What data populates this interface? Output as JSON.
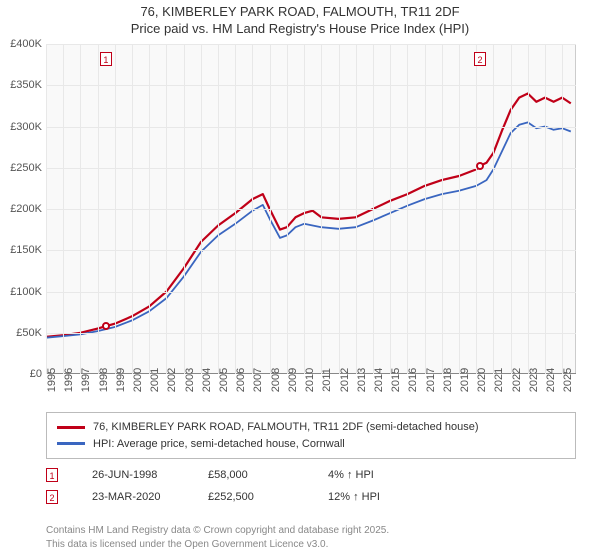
{
  "title": {
    "line1": "76, KIMBERLEY PARK ROAD, FALMOUTH, TR11 2DF",
    "line2": "Price paid vs. HM Land Registry's House Price Index (HPI)"
  },
  "chart": {
    "type": "line",
    "background_color": "#f9f9f9",
    "grid_color": "#e8e8e8",
    "axis_color": "#888888",
    "x": {
      "min": 1995,
      "max": 2025.8,
      "ticks": [
        1995,
        1996,
        1997,
        1998,
        1999,
        2000,
        2001,
        2002,
        2003,
        2004,
        2005,
        2006,
        2007,
        2008,
        2009,
        2010,
        2011,
        2012,
        2013,
        2014,
        2015,
        2016,
        2017,
        2018,
        2019,
        2020,
        2021,
        2022,
        2023,
        2024,
        2025
      ],
      "label_fontsize": 11
    },
    "y": {
      "min": 0,
      "max": 400000,
      "ticks": [
        0,
        50000,
        100000,
        150000,
        200000,
        250000,
        300000,
        350000,
        400000
      ],
      "tick_labels": [
        "£0",
        "£50K",
        "£100K",
        "£150K",
        "£200K",
        "£250K",
        "£300K",
        "£350K",
        "£400K"
      ],
      "label_fontsize": 11
    },
    "series": [
      {
        "name": "76, KIMBERLEY PARK ROAD, FALMOUTH, TR11 2DF (semi-detached house)",
        "color": "#c00018",
        "line_width": 2.2,
        "data": [
          [
            1995,
            45000
          ],
          [
            1996,
            47000
          ],
          [
            1997,
            50000
          ],
          [
            1998,
            55000
          ],
          [
            1998.5,
            58000
          ],
          [
            1999,
            61000
          ],
          [
            2000,
            70000
          ],
          [
            2001,
            82000
          ],
          [
            2002,
            100000
          ],
          [
            2003,
            128000
          ],
          [
            2004,
            160000
          ],
          [
            2005,
            180000
          ],
          [
            2006,
            195000
          ],
          [
            2007,
            212000
          ],
          [
            2007.6,
            218000
          ],
          [
            2008,
            200000
          ],
          [
            2008.6,
            175000
          ],
          [
            2009,
            178000
          ],
          [
            2009.5,
            190000
          ],
          [
            2010,
            195000
          ],
          [
            2010.5,
            198000
          ],
          [
            2011,
            190000
          ],
          [
            2012,
            188000
          ],
          [
            2013,
            190000
          ],
          [
            2014,
            200000
          ],
          [
            2015,
            210000
          ],
          [
            2016,
            218000
          ],
          [
            2017,
            228000
          ],
          [
            2018,
            235000
          ],
          [
            2019,
            240000
          ],
          [
            2020,
            248000
          ],
          [
            2020.22,
            252500
          ],
          [
            2020.6,
            256000
          ],
          [
            2021,
            268000
          ],
          [
            2021.5,
            295000
          ],
          [
            2022,
            320000
          ],
          [
            2022.5,
            335000
          ],
          [
            2023,
            340000
          ],
          [
            2023.5,
            330000
          ],
          [
            2024,
            335000
          ],
          [
            2024.5,
            330000
          ],
          [
            2025,
            335000
          ],
          [
            2025.5,
            328000
          ]
        ]
      },
      {
        "name": "HPI: Average price, semi-detached house, Cornwall",
        "color": "#3a66c0",
        "line_width": 1.8,
        "data": [
          [
            1995,
            44000
          ],
          [
            1996,
            46000
          ],
          [
            1997,
            48000
          ],
          [
            1998,
            52000
          ],
          [
            1999,
            57000
          ],
          [
            2000,
            65000
          ],
          [
            2001,
            76000
          ],
          [
            2002,
            92000
          ],
          [
            2003,
            118000
          ],
          [
            2004,
            148000
          ],
          [
            2005,
            168000
          ],
          [
            2006,
            182000
          ],
          [
            2007,
            198000
          ],
          [
            2007.6,
            205000
          ],
          [
            2008,
            188000
          ],
          [
            2008.6,
            165000
          ],
          [
            2009,
            168000
          ],
          [
            2009.5,
            178000
          ],
          [
            2010,
            182000
          ],
          [
            2011,
            178000
          ],
          [
            2012,
            176000
          ],
          [
            2013,
            178000
          ],
          [
            2014,
            186000
          ],
          [
            2015,
            195000
          ],
          [
            2016,
            204000
          ],
          [
            2017,
            212000
          ],
          [
            2018,
            218000
          ],
          [
            2019,
            222000
          ],
          [
            2020,
            228000
          ],
          [
            2020.6,
            235000
          ],
          [
            2021,
            248000
          ],
          [
            2021.5,
            270000
          ],
          [
            2022,
            292000
          ],
          [
            2022.5,
            302000
          ],
          [
            2023,
            305000
          ],
          [
            2023.5,
            298000
          ],
          [
            2024,
            300000
          ],
          [
            2024.5,
            296000
          ],
          [
            2025,
            298000
          ],
          [
            2025.5,
            294000
          ]
        ]
      }
    ],
    "markers": [
      {
        "id": "1",
        "color": "#c00018",
        "x": 1998.48,
        "y": 58000
      },
      {
        "id": "2",
        "color": "#c00018",
        "x": 2020.22,
        "y": 252500
      }
    ]
  },
  "legend": {
    "series0": "76, KIMBERLEY PARK ROAD, FALMOUTH, TR11 2DF (semi-detached house)",
    "series1": "HPI: Average price, semi-detached house, Cornwall"
  },
  "points": [
    {
      "id": "1",
      "color": "#c00018",
      "date": "26-JUN-1998",
      "price": "£58,000",
      "hpi": "4% ↑ HPI"
    },
    {
      "id": "2",
      "color": "#c00018",
      "date": "23-MAR-2020",
      "price": "£252,500",
      "hpi": "12% ↑ HPI"
    }
  ],
  "attribution": {
    "line1": "Contains HM Land Registry data © Crown copyright and database right 2025.",
    "line2": "This data is licensed under the Open Government Licence v3.0."
  }
}
